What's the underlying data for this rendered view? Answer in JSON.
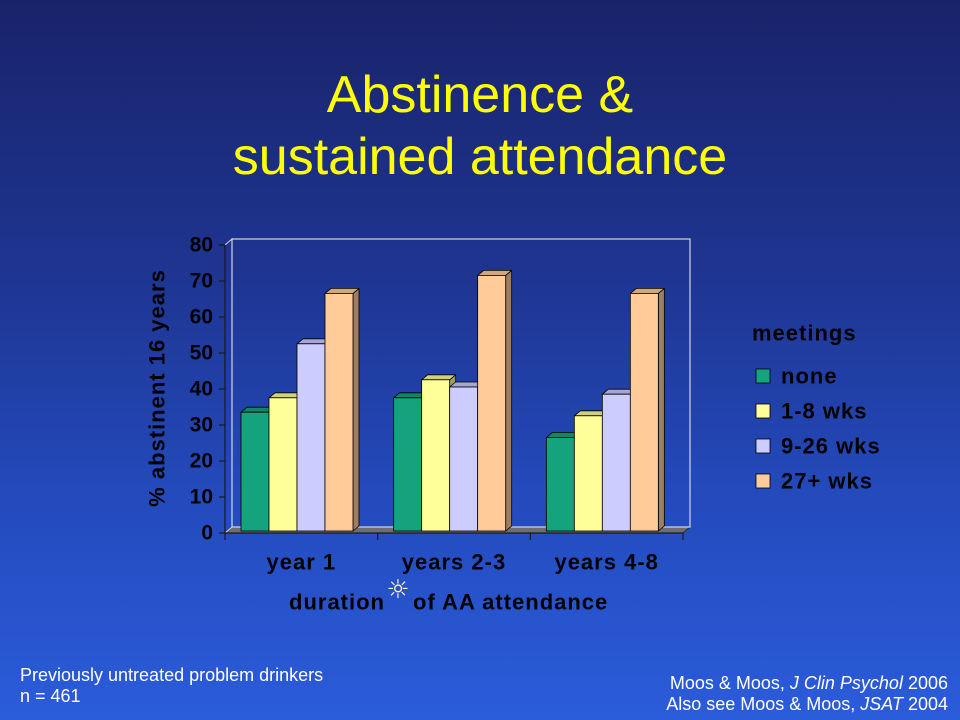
{
  "slide": {
    "title_lines": [
      "Abstinence &",
      "sustained attendance"
    ],
    "title_color": "#FFFF00",
    "footnote_left": [
      "Previously untreated problem drinkers",
      "n = 461"
    ],
    "citations": [
      {
        "prefix": "Moos & Moos, ",
        "journal": "J Clin Psychol",
        "suffix": " 2006"
      },
      {
        "prefix": "Also see Moos & Moos, ",
        "journal": "JSAT",
        "suffix": " 2004"
      }
    ]
  },
  "chart_data": {
    "type": "bar",
    "three_d": true,
    "categories": [
      "year 1",
      "years 2-3",
      "years 4-8"
    ],
    "series": [
      {
        "name": "none",
        "values": [
          33,
          37,
          26
        ],
        "color": "#14A37C"
      },
      {
        "name": "1-8 wks",
        "values": [
          37,
          42,
          32
        ],
        "color": "#FFFF99"
      },
      {
        "name": "9-26 wks",
        "values": [
          52,
          40,
          38
        ],
        "color": "#CCCCFF"
      },
      {
        "name": "27+ wks",
        "values": [
          66,
          71,
          66
        ],
        "color": "#FFCC99"
      }
    ],
    "ylabel": "% abstinent 16 years",
    "xlabel": {
      "before": "duration",
      "symbol": "☼",
      "after": "of AA attendance"
    },
    "ylim": [
      0,
      80
    ],
    "yticks": [
      0,
      10,
      20,
      30,
      40,
      50,
      60,
      70,
      80
    ],
    "grid": false,
    "legend": {
      "title": "meetings",
      "position": "right"
    }
  }
}
